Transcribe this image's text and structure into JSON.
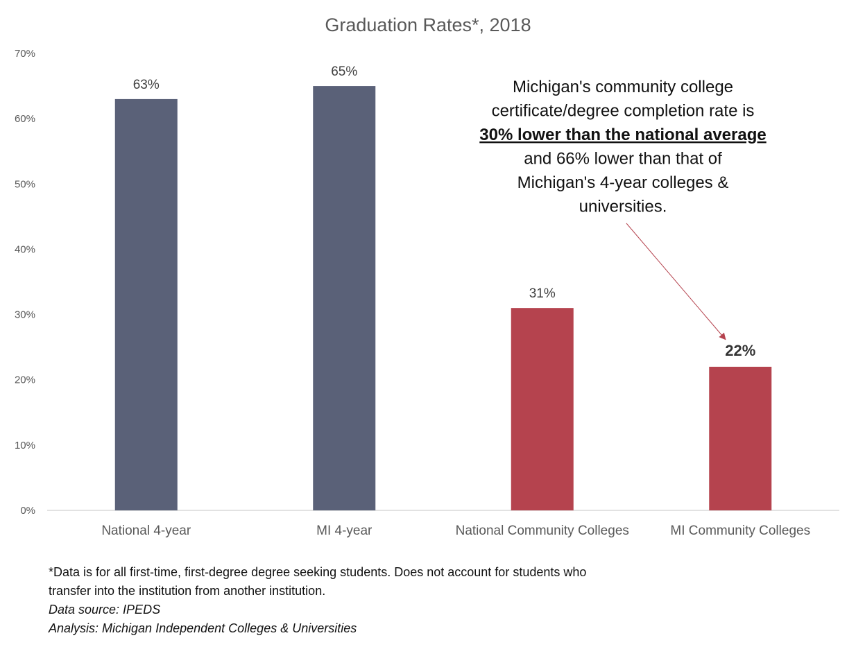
{
  "chart_data": {
    "type": "bar",
    "title": "Graduation Rates*, 2018",
    "categories": [
      "National 4-year",
      "MI 4-year",
      "National Community Colleges",
      "MI Community Colleges"
    ],
    "values": [
      63,
      65,
      31,
      22
    ],
    "value_labels": [
      "63%",
      "65%",
      "31%",
      "22%"
    ],
    "bar_colors": [
      "#5a6178",
      "#5a6178",
      "#b5434e",
      "#b5434e"
    ],
    "ylim": [
      0,
      70
    ],
    "yticks": [
      0,
      10,
      20,
      30,
      40,
      50,
      60,
      70
    ],
    "ytick_labels": [
      "0%",
      "10%",
      "20%",
      "30%",
      "40%",
      "50%",
      "60%",
      "70%"
    ],
    "xlabel": "",
    "ylabel": "",
    "grid": false,
    "annotation": {
      "lines": [
        "Michigan's community college",
        "certificate/degree completion rate is",
        "30% lower than the national average",
        "and 66% lower than that of",
        "Michigan's 4-year colleges &",
        "universities."
      ],
      "emphasis_line_index": 2,
      "points_to": "MI Community Colleges",
      "arrow_color": "#b5434e"
    }
  },
  "footnote": {
    "line1": "*Data is for all first-time, first-degree degree seeking students. Does not account for students who",
    "line2": "transfer into the institution from another institution.",
    "source": "Data source: IPEDS",
    "analysis": "Analysis: Michigan Independent Colleges & Universities"
  }
}
